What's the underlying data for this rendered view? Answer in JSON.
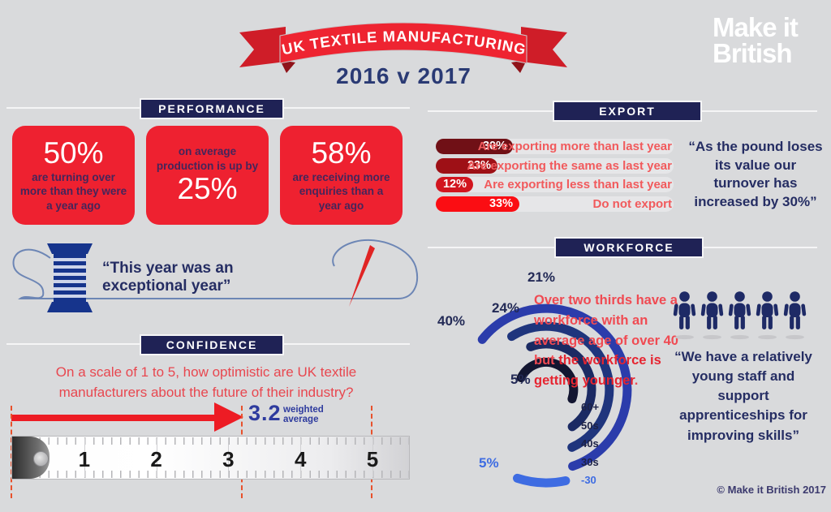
{
  "banner": {
    "title": "UK TEXTILE MANUFACTURING",
    "subtitle": "2016 v 2017"
  },
  "logo": {
    "line1": "Make it",
    "line2": "British"
  },
  "sections": {
    "performance": "PERFORMANCE",
    "confidence": "CONFIDENCE",
    "export": "EXPORT",
    "workforce": "WORKFORCE"
  },
  "performance": {
    "card1": {
      "value": "50%",
      "caption": "are turning over more than they were a year ago"
    },
    "card2": {
      "caption": "on average production is up by",
      "value": "25%"
    },
    "card3": {
      "value": "58%",
      "caption": "are receiving more enquiries than a year ago"
    },
    "quote": "“This year was an exceptional year”"
  },
  "confidence": {
    "question": "On a scale of 1 to 5, how optimistic are UK textile manufacturers about the future of their industry?",
    "score": "3.2",
    "score_caption": "weighted average",
    "ruler_numbers": [
      "1",
      "2",
      "3",
      "4",
      "5"
    ]
  },
  "export": {
    "bars": [
      {
        "pct": 30,
        "pct_label": "30%",
        "label": "Are exporting more than last year",
        "color": "#701016"
      },
      {
        "pct": 23,
        "pct_label": "23%",
        "label": "Are exporting the same as last year",
        "color": "#9e1016"
      },
      {
        "pct": 12,
        "pct_label": "12%",
        "label": "Are exporting less than last year",
        "color": "#d2151f"
      },
      {
        "pct": 33,
        "pct_label": "33%",
        "label": "Do not export",
        "color": "#fb0d13"
      }
    ],
    "quote": "“As the pound loses its value our turnover has increased by 30%”"
  },
  "workforce": {
    "rings": [
      {
        "label": "60+",
        "value": "5%",
        "pct": 5,
        "color": "#131631"
      },
      {
        "label": "50s",
        "value": "24%",
        "pct": 24,
        "color": "#1b2a63"
      },
      {
        "label": "40s",
        "value": "40%",
        "pct": 40,
        "color": "#1f357d"
      },
      {
        "label": "30s",
        "value": "21%",
        "pct": 21,
        "color": "#2b3cab"
      },
      {
        "label": "-30",
        "value": "5%",
        "pct": 5,
        "color": "#3e6ce2"
      }
    ],
    "note": {
      "normal": "Over two thirds have a workforce with an average age of over 40 but ",
      "bold": "the workforce is getting younger",
      "tail": "."
    },
    "people_count": 5,
    "quote": "“We have a relatively young staff and support apprenticeships for improving skills”"
  },
  "footer": "© Make it British 2017",
  "chart_data": [
    {
      "type": "bar",
      "title": "Export",
      "orientation": "horizontal",
      "categories": [
        "Are exporting more than last year",
        "Are exporting the same as last year",
        "Are exporting less than last year",
        "Do not export"
      ],
      "values": [
        30,
        23,
        12,
        33
      ],
      "unit": "%",
      "colors": [
        "#701016",
        "#9e1016",
        "#d2151f",
        "#fb0d13"
      ],
      "legend_position": "right-of-bars"
    },
    {
      "type": "radial-bar",
      "title": "Workforce age distribution",
      "categories": [
        "60+",
        "50s",
        "40s",
        "30s",
        "-30"
      ],
      "values": [
        5,
        24,
        40,
        21,
        5
      ],
      "unit": "%",
      "colors": [
        "#131631",
        "#1b2a63",
        "#1f357d",
        "#2b3cab",
        "#3e6ce2"
      ],
      "annotation": "Over two thirds have a workforce with an average age of over 40 but the workforce is getting younger."
    },
    {
      "type": "scale",
      "title": "Confidence, scale 1 to 5",
      "value": 3.2,
      "value_label": "3.2 weighted average",
      "axis_range": [
        0,
        5
      ],
      "tick_labels": [
        "1",
        "2",
        "3",
        "4",
        "5"
      ]
    }
  ]
}
